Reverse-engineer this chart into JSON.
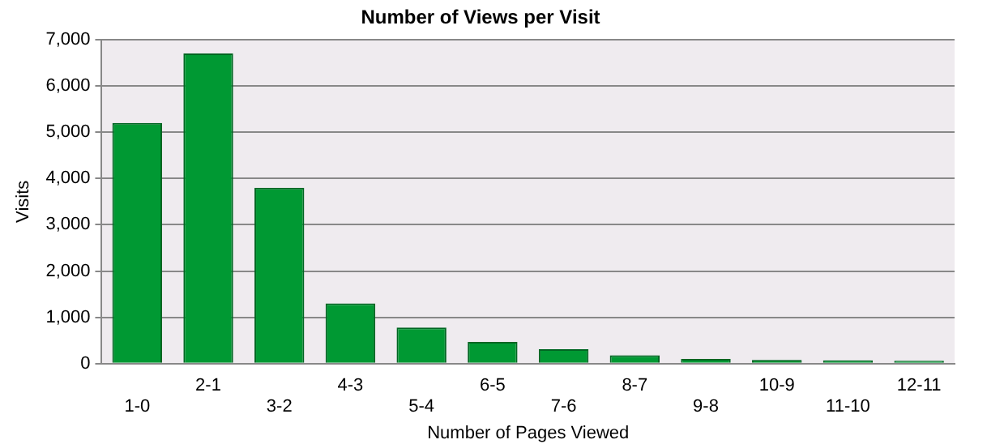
{
  "chart_data": {
    "type": "bar",
    "title": "Number of Views per Visit",
    "xlabel": "Number of Pages Viewed",
    "ylabel": "Visits",
    "categories": [
      "1-0",
      "2-1",
      "3-2",
      "4-3",
      "5-4",
      "6-5",
      "7-6",
      "8-7",
      "9-8",
      "10-9",
      "11-10",
      "12-11"
    ],
    "values": [
      5200,
      6700,
      3800,
      1300,
      780,
      470,
      310,
      180,
      100,
      80,
      70,
      60
    ],
    "color": "#009933",
    "ylim": [
      0,
      7000
    ],
    "yticks": [
      {
        "value": 0,
        "label": "0"
      },
      {
        "value": 1000,
        "label": "1,000"
      },
      {
        "value": 2000,
        "label": "2,000"
      },
      {
        "value": 3000,
        "label": "3,000"
      },
      {
        "value": 4000,
        "label": "4,000"
      },
      {
        "value": 5000,
        "label": "5,000"
      },
      {
        "value": 6000,
        "label": "6,000"
      },
      {
        "value": 7000,
        "label": "7,000"
      }
    ],
    "grid": "y"
  }
}
